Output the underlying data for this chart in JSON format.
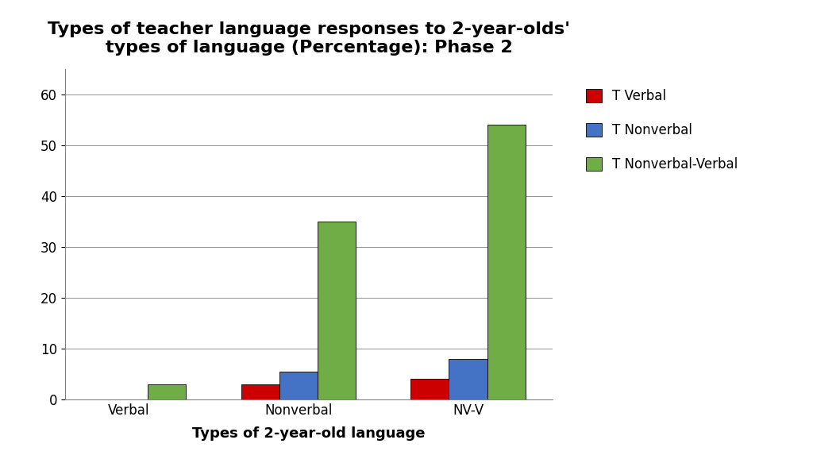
{
  "title": "Types of teacher language responses to 2-year-olds'\ntypes of language (Percentage): Phase 2",
  "xlabel": "Types of 2-year-old language",
  "ylabel": "",
  "categories": [
    "Verbal",
    "Nonverbal",
    "NV-V"
  ],
  "series": [
    {
      "label": "T Verbal",
      "values": [
        0.0,
        3.0,
        4.0
      ],
      "color": "#CC0000"
    },
    {
      "label": "T Nonverbal",
      "values": [
        0.0,
        5.5,
        8.0
      ],
      "color": "#4472C4"
    },
    {
      "label": "T Nonverbal-Verbal",
      "values": [
        3.0,
        35.0,
        54.0
      ],
      "color": "#70AD47"
    }
  ],
  "ylim": [
    0,
    65
  ],
  "yticks": [
    0,
    10,
    20,
    30,
    40,
    50,
    60
  ],
  "bar_width": 0.18,
  "group_centers": [
    0.3,
    1.1,
    1.9
  ],
  "background_color": "#FFFFFF",
  "title_fontsize": 16,
  "axis_label_fontsize": 13,
  "tick_fontsize": 12,
  "legend_fontsize": 12
}
